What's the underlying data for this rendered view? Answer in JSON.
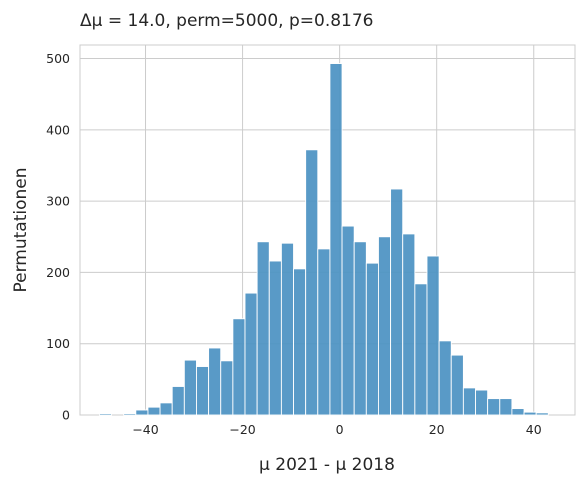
{
  "chart_data": {
    "type": "bar",
    "title": "Δμ = 14.0, perm=5000, p=0.8176",
    "xlabel": "μ 2021 - μ 2018",
    "ylabel": "Permutationen",
    "xlim": [
      -53.5,
      48.5
    ],
    "ylim": [
      0,
      519
    ],
    "xticks": [
      -40,
      -20,
      0,
      20,
      40
    ],
    "yticks": [
      0,
      100,
      200,
      300,
      400,
      500
    ],
    "grid": true,
    "legend": "none",
    "bar_color": "#4c92c3",
    "bin_width": 2.5,
    "bins_start": -49.5,
    "counts": [
      2,
      0,
      2,
      7,
      11,
      17,
      40,
      77,
      68,
      94,
      76,
      135,
      171,
      243,
      216,
      241,
      205,
      372,
      233,
      493,
      265,
      243,
      213,
      250,
      317,
      254,
      184,
      223,
      104,
      84,
      38,
      35,
      23,
      23,
      9,
      4,
      3
    ]
  }
}
